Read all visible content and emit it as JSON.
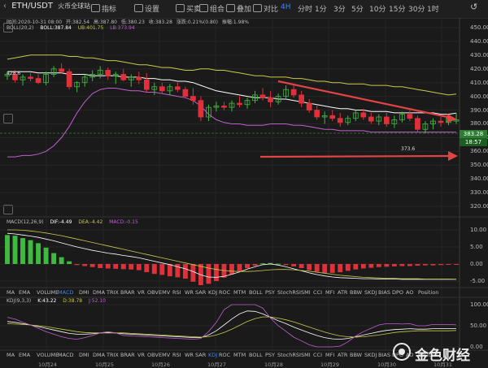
{
  "header": {
    "pair": "ETH/USDT",
    "exchange": "火币全球站",
    "tools": [
      "指标",
      "设置",
      "买卖",
      "组合",
      "叠加",
      "对比"
    ],
    "timeframes": [
      "4H",
      "分时",
      "1分",
      "3分",
      "5分",
      "10分",
      "15分",
      "30分",
      "1时"
    ],
    "active_timeframe": "4H",
    "right_icon": "↺"
  },
  "ohlc": {
    "date_label": "时间:2020-10-31 08:00",
    "open_label": "开:382.54",
    "high_label": "高:387.80",
    "low_label": "低:380.23",
    "close_label": "收:383.28",
    "change_label": "涨跌:0.21%(0.80)",
    "amp_label": "振幅:1.98%"
  },
  "boll": {
    "title": "BOLL(20,2)",
    "mid_label": "BOLL:387.84",
    "up_label": "UB:401.75",
    "lb_label": "LB:373.94"
  },
  "price_axis": [
    "450.00",
    "440.00",
    "430.00",
    "420.00",
    "410.00",
    "400.00",
    "390.00",
    "380.00",
    "370.00",
    "360.00",
    "350.00",
    "340.00",
    "330.00",
    "320.00"
  ],
  "price_tags": {
    "close": "383.28",
    "lb": "18:57"
  },
  "annotations": {
    "high": "428.6",
    "low": "373.6"
  },
  "macd": {
    "title": "MACD(12,26,9)",
    "dif_label": "DIF:-4.49",
    "dea_label": "DEA:-4.42",
    "macd_label": "MACD:-0.15",
    "axis": [
      "10.00",
      "5.00",
      "0.00",
      "-5.00"
    ]
  },
  "kdj": {
    "title": "KDJ(9,3,3)",
    "k_label": "K:43.22",
    "d_label": "D:38.78",
    "j_label": "J:52.10",
    "axis": [
      "100.00",
      "50.00",
      "0.00"
    ]
  },
  "indicator_tabs": [
    "MA",
    "EMA",
    "VOLUME",
    "MACD",
    "DMI",
    "DMA",
    "TRIX",
    "BRAR",
    "VR",
    "OBV",
    "EMV",
    "RSI",
    "WR",
    "SAR",
    "KDJ",
    "ROC",
    "MTM",
    "BOLL",
    "PSY",
    "StochRSI",
    "SMI",
    "CCI",
    "MFI",
    "ATR",
    "BBW",
    "SKDJ",
    "BIAS",
    "DPO",
    "AO",
    "Position"
  ],
  "active_tab_top": "MACD",
  "active_tab_bottom": "KDJ",
  "dates": [
    "10月24",
    "10月25",
    "10月26",
    "10月27",
    "10月28",
    "10月29",
    "10月30",
    "10月31"
  ],
  "watermark": "金色财经",
  "colors": {
    "up": "#3fb93f",
    "down": "#e0303a",
    "boll_mid": "#ffffff",
    "boll_up": "#c9c94a",
    "boll_lb": "#c05fd0",
    "arrow": "#e24444",
    "accent": "#3e86f3"
  },
  "chart_data": {
    "type": "candlestick",
    "candles": [
      [
        415,
        418,
        412,
        416
      ],
      [
        416,
        419,
        410,
        412
      ],
      [
        412,
        416,
        408,
        414
      ],
      [
        414,
        417,
        411,
        413
      ],
      [
        413,
        416,
        409,
        410
      ],
      [
        410,
        418,
        408,
        416
      ],
      [
        416,
        422,
        414,
        420
      ],
      [
        420,
        424,
        417,
        418
      ],
      [
        418,
        420,
        405,
        407
      ],
      [
        407,
        411,
        403,
        410
      ],
      [
        410,
        416,
        407,
        414
      ],
      [
        414,
        419,
        411,
        416
      ],
      [
        416,
        422,
        413,
        419
      ],
      [
        419,
        421,
        412,
        415
      ],
      [
        415,
        418,
        409,
        416
      ],
      [
        416,
        420,
        411,
        412
      ],
      [
        412,
        416,
        407,
        414
      ],
      [
        414,
        418,
        409,
        412
      ],
      [
        412,
        417,
        403,
        405
      ],
      [
        405,
        410,
        401,
        407
      ],
      [
        407,
        410,
        402,
        404
      ],
      [
        404,
        409,
        401,
        407
      ],
      [
        407,
        410,
        403,
        405
      ],
      [
        405,
        407,
        399,
        400
      ],
      [
        400,
        406,
        394,
        397
      ],
      [
        397,
        400,
        382,
        385
      ],
      [
        385,
        394,
        382,
        392
      ],
      [
        392,
        396,
        389,
        393
      ],
      [
        393,
        396,
        390,
        392
      ],
      [
        392,
        397,
        389,
        395
      ],
      [
        395,
        400,
        392,
        394
      ],
      [
        394,
        399,
        391,
        397
      ],
      [
        397,
        404,
        395,
        401
      ],
      [
        401,
        406,
        397,
        399
      ],
      [
        399,
        404,
        392,
        396
      ],
      [
        396,
        402,
        394,
        400
      ],
      [
        400,
        408,
        398,
        405
      ],
      [
        405,
        408,
        399,
        401
      ],
      [
        401,
        404,
        392,
        395
      ],
      [
        395,
        398,
        388,
        390
      ],
      [
        390,
        394,
        383,
        385
      ],
      [
        385,
        389,
        380,
        386
      ],
      [
        386,
        390,
        382,
        384
      ],
      [
        384,
        388,
        378,
        381
      ],
      [
        381,
        386,
        379,
        384
      ],
      [
        384,
        390,
        382,
        388
      ],
      [
        388,
        391,
        383,
        385
      ],
      [
        385,
        388,
        380,
        382
      ],
      [
        382,
        387,
        379,
        385
      ],
      [
        385,
        388,
        378,
        380
      ],
      [
        380,
        386,
        377,
        383
      ],
      [
        383,
        389,
        381,
        387
      ],
      [
        387,
        390,
        382,
        384
      ],
      [
        384,
        386,
        374,
        376
      ],
      [
        376,
        382,
        373,
        380
      ],
      [
        380,
        384,
        376,
        382
      ],
      [
        382,
        385,
        378,
        381
      ],
      [
        381,
        385,
        379,
        384
      ],
      [
        382,
        388,
        380,
        383
      ]
    ],
    "boll_mid": [
      418,
      418,
      418,
      418,
      417,
      417,
      417,
      417,
      416,
      416,
      416,
      415,
      415,
      415,
      415,
      414,
      414,
      414,
      413,
      413,
      412,
      412,
      411,
      411,
      410,
      408,
      406,
      404,
      403,
      402,
      401,
      400,
      399,
      399,
      399,
      398,
      398,
      397,
      396,
      395,
      394,
      393,
      392,
      391,
      391,
      390,
      390,
      389,
      389,
      389,
      388,
      388,
      388,
      388,
      388,
      388,
      387,
      387,
      387.84
    ],
    "boll_up": [
      427,
      428,
      429,
      430,
      430,
      430,
      430,
      430,
      429,
      429,
      428,
      428,
      427,
      426,
      426,
      425,
      424,
      423,
      423,
      422,
      421,
      421,
      420,
      419,
      419,
      420,
      420,
      419,
      419,
      418,
      417,
      416,
      415,
      415,
      414,
      414,
      414,
      413,
      413,
      412,
      411,
      411,
      410,
      410,
      409,
      409,
      409,
      408,
      408,
      408,
      407,
      407,
      406,
      405,
      404,
      403,
      402,
      401,
      401.75
    ],
    "boll_lb": [
      356,
      356,
      357,
      357,
      358,
      360,
      364,
      370,
      378,
      388,
      396,
      402,
      405,
      406,
      406,
      405,
      404,
      404,
      403,
      403,
      402,
      401,
      400,
      399,
      397,
      393,
      387,
      383,
      381,
      380,
      380,
      379,
      379,
      379,
      380,
      380,
      380,
      379,
      379,
      378,
      377,
      376,
      376,
      375,
      375,
      375,
      375,
      374,
      374,
      374,
      374,
      374,
      374,
      374,
      374,
      374,
      374,
      374,
      373.94
    ],
    "macd_hist": [
      8.5,
      8.3,
      7.6,
      7.0,
      6.1,
      4.8,
      3.2,
      2.0,
      0.8,
      -0.3,
      -0.6,
      -0.9,
      -1.2,
      -1.3,
      -1.4,
      -1.5,
      -1.6,
      -1.8,
      -2.4,
      -2.9,
      -3.2,
      -3.6,
      -3.9,
      -4.3,
      -5.2,
      -6.2,
      -5.8,
      -5.0,
      -4.0,
      -3.0,
      -2.0,
      -1.2,
      -0.5,
      0.2,
      0.3,
      0.1,
      -0.3,
      -0.7,
      -1.2,
      -1.8,
      -2.3,
      -2.6,
      -2.6,
      -2.4,
      -2.0,
      -1.6,
      -1.3,
      -1.1,
      -0.9,
      -0.8,
      -0.7,
      -0.6,
      -0.6,
      -0.5,
      -0.4,
      -0.4,
      -0.3,
      -0.2,
      -0.15
    ],
    "dif": [
      9,
      8.8,
      8.5,
      8.2,
      7.8,
      7.3,
      6.8,
      6.2,
      5.6,
      5.0,
      4.5,
      4.0,
      3.6,
      3.2,
      2.9,
      2.5,
      2.2,
      1.8,
      1.3,
      0.8,
      0.3,
      -0.2,
      -0.8,
      -1.4,
      -2.2,
      -3.2,
      -3.8,
      -3.9,
      -3.6,
      -3.0,
      -2.3,
      -1.5,
      -0.8,
      -0.2,
      0.0,
      -0.3,
      -0.8,
      -1.4,
      -2.0,
      -2.6,
      -3.1,
      -3.5,
      -3.8,
      -4.0,
      -4.1,
      -4.2,
      -4.3,
      -4.3,
      -4.4,
      -4.4,
      -4.4,
      -4.5,
      -4.5,
      -4.5,
      -4.5,
      -4.5,
      -4.5,
      -4.5,
      -4.49
    ],
    "dea": [
      10,
      10,
      9.9,
      9.7,
      9.4,
      9.1,
      8.7,
      8.3,
      7.8,
      7.3,
      6.8,
      6.3,
      5.8,
      5.3,
      4.8,
      4.3,
      3.8,
      3.3,
      2.8,
      2.3,
      1.8,
      1.3,
      0.8,
      0.3,
      -0.2,
      -0.7,
      -1.2,
      -1.6,
      -1.9,
      -2.1,
      -2.2,
      -2.2,
      -2.1,
      -1.9,
      -1.7,
      -1.6,
      -1.6,
      -1.7,
      -1.9,
      -2.1,
      -2.4,
      -2.7,
      -3.0,
      -3.3,
      -3.5,
      -3.7,
      -3.9,
      -4.0,
      -4.1,
      -4.2,
      -4.2,
      -4.3,
      -4.3,
      -4.3,
      -4.4,
      -4.4,
      -4.4,
      -4.4,
      -4.42
    ],
    "kdj_k": [
      60,
      58,
      55,
      52,
      48,
      44,
      40,
      36,
      32,
      30,
      30,
      31,
      33,
      34,
      33,
      31,
      30,
      29,
      28,
      27,
      26,
      25,
      24,
      23,
      22,
      22,
      28,
      38,
      52,
      66,
      78,
      85,
      84,
      78,
      70,
      62,
      55,
      47,
      40,
      33,
      27,
      22,
      19,
      18,
      20,
      24,
      28,
      32,
      36,
      39,
      41,
      42,
      43,
      42,
      42,
      43,
      43,
      43,
      43.22
    ],
    "kdj_d": [
      55,
      54,
      53,
      52,
      50,
      48,
      45,
      42,
      39,
      36,
      34,
      33,
      33,
      33,
      33,
      33,
      32,
      31,
      30,
      29,
      28,
      27,
      26,
      25,
      24,
      23,
      24,
      28,
      34,
      42,
      51,
      60,
      67,
      71,
      71,
      68,
      64,
      59,
      53,
      47,
      41,
      35,
      30,
      26,
      24,
      23,
      24,
      26,
      28,
      31,
      34,
      36,
      37,
      38,
      38,
      38,
      38,
      38,
      38.78
    ],
    "kdj_j": [
      70,
      66,
      58,
      52,
      44,
      36,
      30,
      24,
      20,
      18,
      22,
      27,
      33,
      36,
      33,
      27,
      26,
      25,
      24,
      23,
      22,
      21,
      20,
      19,
      18,
      20,
      36,
      58,
      88,
      100,
      100,
      100,
      100,
      92,
      68,
      50,
      37,
      23,
      14,
      5,
      0,
      0,
      0,
      2,
      12,
      26,
      36,
      44,
      52,
      55,
      55,
      54,
      55,
      50,
      50,
      53,
      53,
      53,
      52.1
    ]
  }
}
